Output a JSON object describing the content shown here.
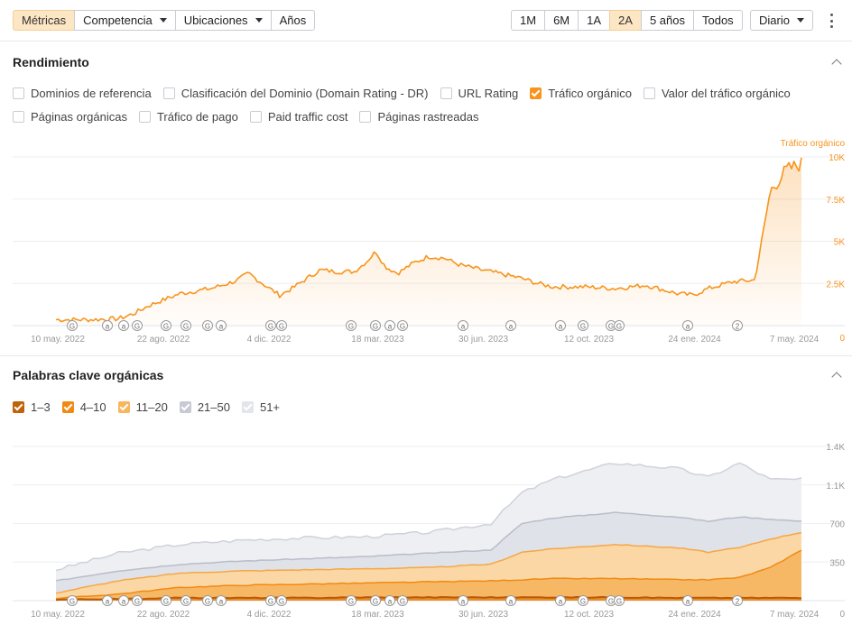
{
  "toolbar": {
    "left_buttons": [
      "Métricas",
      "Competencia",
      "Ubicaciones",
      "Años"
    ],
    "ranges": [
      "1M",
      "6M",
      "1A",
      "2A",
      "5 años",
      "Todos"
    ],
    "active_range": "2A",
    "granularity": "Diario",
    "colors": {
      "active_bg": "#fde6c4",
      "accent": "#f7941d"
    }
  },
  "performance": {
    "title": "Rendimiento",
    "options_row1": [
      {
        "label": "Dominios de referencia",
        "checked": false
      },
      {
        "label": "Clasificación del Dominio (Domain Rating - DR)",
        "checked": false
      },
      {
        "label": "URL Rating",
        "checked": false
      },
      {
        "label": "Tráfico orgánico",
        "checked": true
      },
      {
        "label": "Valor del tráfico orgánico",
        "checked": false
      }
    ],
    "options_row2": [
      {
        "label": "Páginas orgánicas",
        "checked": false
      },
      {
        "label": "Tráfico de pago",
        "checked": false
      },
      {
        "label": "Paid traffic cost",
        "checked": false
      },
      {
        "label": "Páginas rastreadas",
        "checked": false
      }
    ]
  },
  "keywords": {
    "title": "Palabras clave orgánicas",
    "legend": [
      {
        "label": "1–3",
        "color": "#c0620a"
      },
      {
        "label": "4–10",
        "color": "#f08a12"
      },
      {
        "label": "11–20",
        "color": "#f9b55a"
      },
      {
        "label": "21–50",
        "color": "#c7cad3"
      },
      {
        "label": "51+",
        "color": "#e3e5ec"
      }
    ]
  },
  "chart_data": [
    {
      "type": "area",
      "series": [
        {
          "name": "Tráfico orgánico",
          "color": "#f7941d"
        }
      ],
      "axis_title": "Tráfico orgánico",
      "x_tick_labels": [
        "10 may. 2022",
        "22 ago. 2022",
        "4 dic. 2022",
        "18 mar. 2023",
        "30 jun. 2023",
        "12 oct. 2023",
        "24 ene. 2024",
        "7 may. 2024"
      ],
      "y_tick_labels": [
        "0",
        "2.5K",
        "5K",
        "7.5K",
        "10K"
      ],
      "ylim": [
        0,
        10000
      ],
      "y_axis_position": "right",
      "grid": true,
      "x_month_index": [
        0,
        3.4,
        6.8,
        10.3,
        13.7,
        17.1,
        20.5,
        24
      ],
      "points": [
        [
          0,
          350
        ],
        [
          1,
          350
        ],
        [
          2,
          400
        ],
        [
          2.5,
          700
        ],
        [
          3,
          1200
        ],
        [
          4,
          1900
        ],
        [
          5,
          2200
        ],
        [
          5.8,
          2650
        ],
        [
          6.2,
          3100
        ],
        [
          6.8,
          2300
        ],
        [
          7.2,
          1800
        ],
        [
          7.6,
          2200
        ],
        [
          8,
          2700
        ],
        [
          8.5,
          3300
        ],
        [
          9,
          3200
        ],
        [
          9.6,
          3200
        ],
        [
          10,
          3800
        ],
        [
          10.3,
          4400
        ],
        [
          10.6,
          3500
        ],
        [
          11,
          3100
        ],
        [
          11.5,
          3700
        ],
        [
          12,
          4100
        ],
        [
          12.5,
          4000
        ],
        [
          13,
          3600
        ],
        [
          13.7,
          3300
        ],
        [
          14.5,
          3000
        ],
        [
          15,
          2800
        ],
        [
          15.5,
          2500
        ],
        [
          16,
          2300
        ],
        [
          17,
          2300
        ],
        [
          18,
          2200
        ],
        [
          19,
          2400
        ],
        [
          20,
          1900
        ],
        [
          20.5,
          1800
        ],
        [
          21,
          2200
        ],
        [
          21.8,
          2600
        ],
        [
          22.5,
          2700
        ],
        [
          23,
          8000
        ],
        [
          23.5,
          9200
        ],
        [
          24,
          9600
        ]
      ],
      "markers": [
        "G",
        "a",
        "a",
        "G",
        "G",
        "G",
        "G",
        "a",
        "G",
        "G",
        "G",
        "G",
        "a",
        "G",
        "a",
        "a",
        "a",
        "G",
        "G",
        "G",
        "a",
        "2"
      ]
    },
    {
      "type": "area",
      "series": [
        {
          "name": "1–3",
          "color": "#c0620a"
        },
        {
          "name": "4–10",
          "color": "#f08a12"
        },
        {
          "name": "11–20",
          "color": "#f9b55a"
        },
        {
          "name": "21–50",
          "color": "#c7cad3"
        },
        {
          "name": "51+",
          "color": "#e3e5ec"
        }
      ],
      "x_tick_labels": [
        "10 may. 2022",
        "22 ago. 2022",
        "4 dic. 2022",
        "18 mar. 2023",
        "30 jun. 2023",
        "12 oct. 2023",
        "24 ene. 2024",
        "7 may. 2024"
      ],
      "y_tick_labels": [
        "0",
        "350",
        "700",
        "1.1K",
        "1.4K"
      ],
      "ylim": [
        0,
        1400
      ],
      "y_axis_position": "right",
      "stacked": true,
      "grid": true,
      "x": [
        0,
        2,
        4,
        6,
        8,
        10,
        12,
        14,
        15,
        16,
        18,
        20,
        21,
        22,
        23,
        24
      ],
      "cumulative": {
        "1–3": [
          10,
          15,
          25,
          25,
          25,
          30,
          30,
          30,
          30,
          30,
          30,
          25,
          25,
          25,
          25,
          25
        ],
        "4–10": [
          20,
          60,
          120,
          140,
          150,
          160,
          170,
          180,
          190,
          200,
          200,
          190,
          190,
          210,
          300,
          460
        ],
        "11–20": [
          70,
          180,
          250,
          270,
          280,
          290,
          300,
          330,
          440,
          470,
          510,
          480,
          440,
          480,
          560,
          620
        ],
        "21–50": [
          180,
          270,
          330,
          360,
          380,
          400,
          430,
          460,
          700,
          750,
          800,
          760,
          720,
          760,
          740,
          720
        ],
        "51+": [
          280,
          430,
          510,
          550,
          570,
          580,
          620,
          700,
          980,
          1100,
          1250,
          1200,
          1120,
          1250,
          1100,
          1100
        ]
      },
      "markers": [
        "G",
        "a",
        "a",
        "G",
        "G",
        "G",
        "G",
        "a",
        "G",
        "G",
        "G",
        "G",
        "a",
        "G",
        "a",
        "a",
        "a",
        "G",
        "G",
        "G",
        "a",
        "2"
      ]
    }
  ]
}
